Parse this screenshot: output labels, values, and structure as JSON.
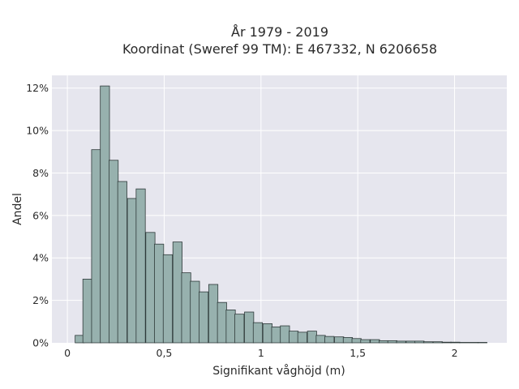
{
  "chart_data": {
    "type": "bar",
    "title_line1": "År 1979 - 2019",
    "title_line2": "Koordinat (Sweref 99 TM): E 467332, N 6206658",
    "xlabel": "Signifikant våghöjd (m)",
    "ylabel": "Andel",
    "xlim": [
      -0.08,
      2.27
    ],
    "ylim": [
      0,
      12.6
    ],
    "bin_width": 0.0475,
    "x_ticks": [
      {
        "value": 0,
        "label": "0"
      },
      {
        "value": 0.5,
        "label": "0,5"
      },
      {
        "value": 1,
        "label": "1"
      },
      {
        "value": 1.5,
        "label": "1,5"
      },
      {
        "value": 2,
        "label": "2"
      }
    ],
    "y_ticks": [
      {
        "value": 0,
        "label": "0%"
      },
      {
        "value": 2,
        "label": "2%"
      },
      {
        "value": 4,
        "label": "4%"
      },
      {
        "value": 6,
        "label": "6%"
      },
      {
        "value": 8,
        "label": "8%"
      },
      {
        "value": 10,
        "label": "10%"
      },
      {
        "value": 12,
        "label": "12%"
      }
    ],
    "bin_start": [
      0.04,
      0.08,
      0.125,
      0.17,
      0.215,
      0.26,
      0.31,
      0.355,
      0.405,
      0.45,
      0.495,
      0.545,
      0.59,
      0.635,
      0.68,
      0.73,
      0.775,
      0.82,
      0.865,
      0.915,
      0.96,
      1.01,
      1.055,
      1.1,
      1.145,
      1.19,
      1.24,
      1.285,
      1.33,
      1.38,
      1.425,
      1.47,
      1.515,
      1.565,
      1.61,
      1.655,
      1.7,
      1.75,
      1.795,
      1.84,
      1.89,
      1.935,
      1.98,
      2.025,
      2.075,
      2.12
    ],
    "values": [
      0.35,
      3.0,
      9.1,
      12.1,
      8.6,
      7.6,
      6.8,
      7.25,
      5.2,
      4.65,
      4.15,
      4.75,
      3.3,
      2.9,
      2.4,
      2.75,
      1.9,
      1.55,
      1.35,
      1.45,
      0.95,
      0.9,
      0.75,
      0.8,
      0.55,
      0.5,
      0.55,
      0.35,
      0.3,
      0.28,
      0.25,
      0.2,
      0.15,
      0.15,
      0.1,
      0.1,
      0.08,
      0.08,
      0.08,
      0.05,
      0.05,
      0.03,
      0.03,
      0.02,
      0.02,
      0.02
    ],
    "colors": {
      "bar_fill": "#97b1ae",
      "bar_edge": "#2f3a3a",
      "plot_bg": "#e6e6ee",
      "grid": "#ffffff"
    },
    "grid": true
  }
}
